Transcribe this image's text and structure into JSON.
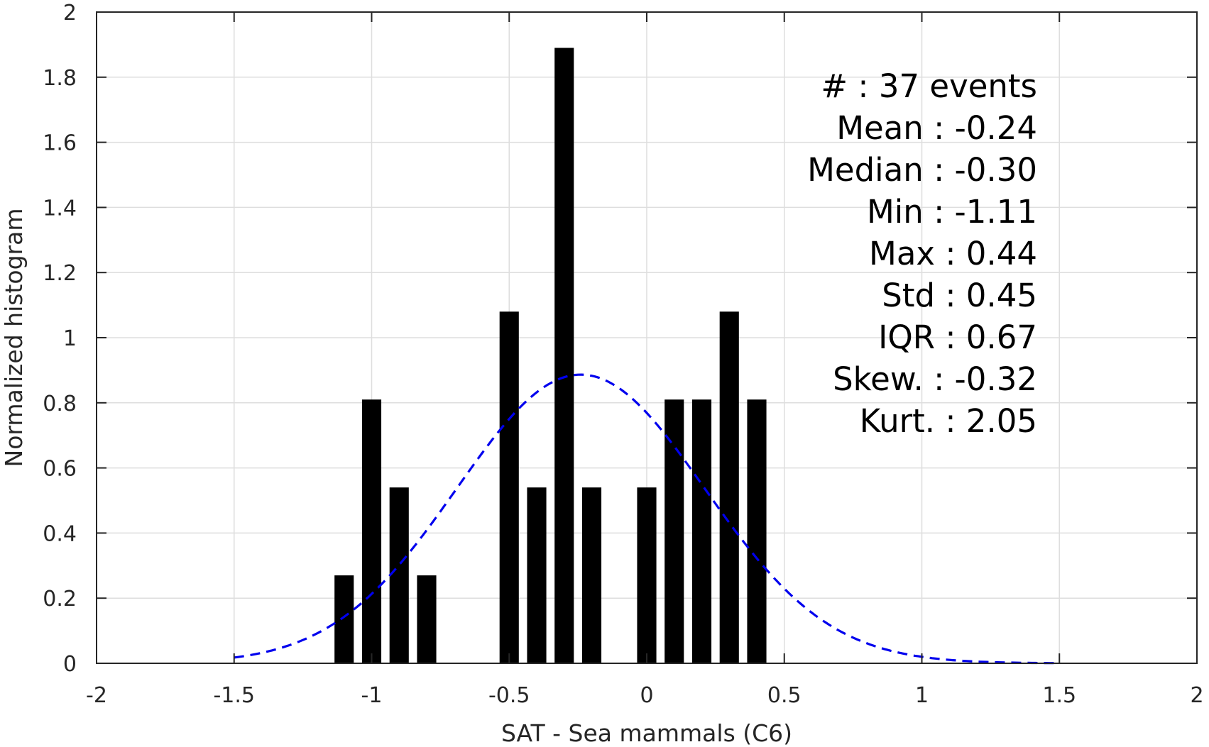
{
  "chart_data": {
    "type": "bar",
    "xlabel": "SAT - Sea mammals (C6)",
    "ylabel": "Normalized histogram",
    "xlim": [
      -2,
      2
    ],
    "ylim": [
      0,
      2
    ],
    "x_ticks": [
      -2,
      -1.5,
      -1,
      -0.5,
      0,
      0.5,
      1,
      1.5,
      2
    ],
    "x_tick_labels": [
      "-2",
      "-1.5",
      "-1",
      "-0.5",
      "0",
      "0.5",
      "1",
      "1.5",
      "2"
    ],
    "y_ticks": [
      0,
      0.2,
      0.4,
      0.6,
      0.8,
      1,
      1.2,
      1.4,
      1.6,
      1.8,
      2
    ],
    "y_tick_labels": [
      "0",
      "0.2",
      "0.4",
      "0.6",
      "0.8",
      "1",
      "1.2",
      "1.4",
      "1.6",
      "1.8",
      "2"
    ],
    "grid": true,
    "bar_color": "#000000",
    "bar_width": 0.07,
    "bins": [
      {
        "x": -1.1,
        "value": 0.27
      },
      {
        "x": -1.0,
        "value": 0.81
      },
      {
        "x": -0.9,
        "value": 0.54
      },
      {
        "x": -0.8,
        "value": 0.27
      },
      {
        "x": -0.5,
        "value": 1.08
      },
      {
        "x": -0.4,
        "value": 0.54
      },
      {
        "x": -0.3,
        "value": 1.89
      },
      {
        "x": -0.2,
        "value": 0.54
      },
      {
        "x": 0.0,
        "value": 0.54
      },
      {
        "x": 0.1,
        "value": 0.81
      },
      {
        "x": 0.2,
        "value": 0.81
      },
      {
        "x": 0.3,
        "value": 1.08
      },
      {
        "x": 0.4,
        "value": 0.81
      }
    ],
    "fit_curve": {
      "style": "dashed",
      "color": "#0000ee",
      "mean": -0.24,
      "std": 0.45,
      "x_range": [
        -1.5,
        1.5
      ]
    },
    "stats": [
      {
        "label": "#  : 37 events"
      },
      {
        "label": "Mean : -0.24"
      },
      {
        "label": "Median : -0.30"
      },
      {
        "label": "Min : -1.11"
      },
      {
        "label": "Max : 0.44"
      },
      {
        "label": "Std : 0.45"
      },
      {
        "label": "IQR : 0.67"
      },
      {
        "label": "Skew. : -0.32"
      },
      {
        "label": "Kurt. : 2.05"
      }
    ]
  }
}
